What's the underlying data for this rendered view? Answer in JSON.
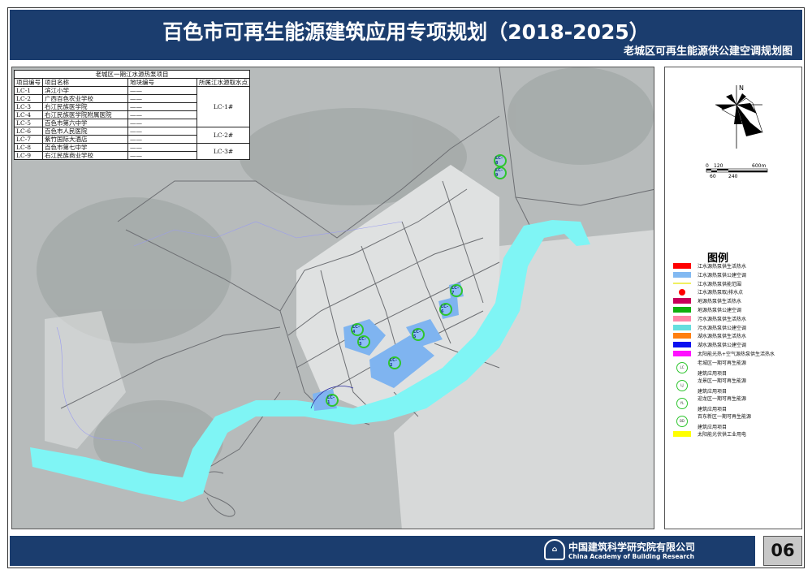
{
  "header": {
    "title": "百色市可再生能源建筑应用专项规划（2018-2025）",
    "subtitle": "老城区可再生能源供公建空调规划图"
  },
  "table": {
    "caption": "老城区一期江水源热泵项目",
    "headers": [
      "项目编号",
      "项目名称",
      "地块编号",
      "所属江水源取水点"
    ],
    "rows": [
      {
        "id": "LC-1",
        "name": "滨江小学",
        "plot": "——"
      },
      {
        "id": "LC-2",
        "name": "广西百色农业学校",
        "plot": "——"
      },
      {
        "id": "LC-3",
        "name": "右江民族医学院",
        "plot": "——"
      },
      {
        "id": "LC-4",
        "name": "右江民族医学院附属医院",
        "plot": "——"
      },
      {
        "id": "LC-5",
        "name": "百色市第六中学",
        "plot": "——"
      },
      {
        "id": "LC-6",
        "name": "百色市人民医院",
        "plot": "——"
      },
      {
        "id": "LC-7",
        "name": "紫竹国际大酒店",
        "plot": "——"
      },
      {
        "id": "LC-8",
        "name": "百色市第七中学",
        "plot": "——"
      },
      {
        "id": "LC-9",
        "name": "右江民族商业学校",
        "plot": "——"
      }
    ],
    "sources": [
      "LC-1#",
      "LC-2#",
      "LC-3#"
    ]
  },
  "map": {
    "markers": [
      "LC-1",
      "LC-2",
      "LC-3",
      "LC-4",
      "LC-5",
      "LC-6",
      "LC-7",
      "LC-8",
      "LC-9"
    ],
    "colors": {
      "river": "#7ff5f5",
      "supply_block": "#7fb4f0",
      "marker_ring": "#2ec52e"
    }
  },
  "compass": {
    "north": "N",
    "scale_top": [
      "0",
      "120",
      "600m"
    ],
    "scale_bottom": [
      "60",
      "240"
    ]
  },
  "legend": {
    "title": "图例",
    "items": [
      {
        "label": "江水源热泵供生活热水",
        "color": "#ff0000",
        "kind": "box"
      },
      {
        "label": "江水源热泵供公建空调",
        "color": "#82b9f2",
        "kind": "box"
      },
      {
        "label": "江水源热泵供能范围",
        "color": "#f0f060",
        "kind": "line"
      },
      {
        "label": "江水源热泵取/排水点",
        "color": "#ff0000",
        "kind": "dot"
      },
      {
        "label": "地源热泵供生活热水",
        "color": "#c8005a",
        "kind": "box"
      },
      {
        "label": "地源热泵供公建空调",
        "color": "#10b010",
        "kind": "box"
      },
      {
        "label": "污水源热泵供生活热水",
        "color": "#ff86a8",
        "kind": "box"
      },
      {
        "label": "污水源热泵供公建空调",
        "color": "#66dede",
        "kind": "box"
      },
      {
        "label": "湖水源热泵供生活热水",
        "color": "#ff7f10",
        "kind": "box"
      },
      {
        "label": "湖水源热泵供公建空调",
        "color": "#0a10f0",
        "kind": "box"
      },
      {
        "label": "太阳能光热+空气源热泵供生活热水",
        "color": "#ff10ff",
        "kind": "box"
      },
      {
        "label": "老城区一期可再生能源",
        "label2": "建筑应用项目",
        "kind": "ring",
        "glyph": "LC"
      },
      {
        "label": "龙景区一期可再生能源",
        "label2": "建筑应用项目",
        "kind": "ring",
        "glyph": "LJ"
      },
      {
        "label": "迎龙区一期可再生能源",
        "label2": "建筑应用项目",
        "kind": "ring",
        "glyph": "YL"
      },
      {
        "label": "百东新区一期可再生能源",
        "label2": "建筑应用项目",
        "kind": "ring",
        "glyph": "BD"
      },
      {
        "label": "太阳能光伏供工业用电",
        "color": "#ffff00",
        "kind": "box"
      }
    ]
  },
  "footer": {
    "org_cn": "中国建筑科学研究院有限公司",
    "org_en": "China Academy of Building Research",
    "logo": "CABR",
    "page": "06"
  }
}
